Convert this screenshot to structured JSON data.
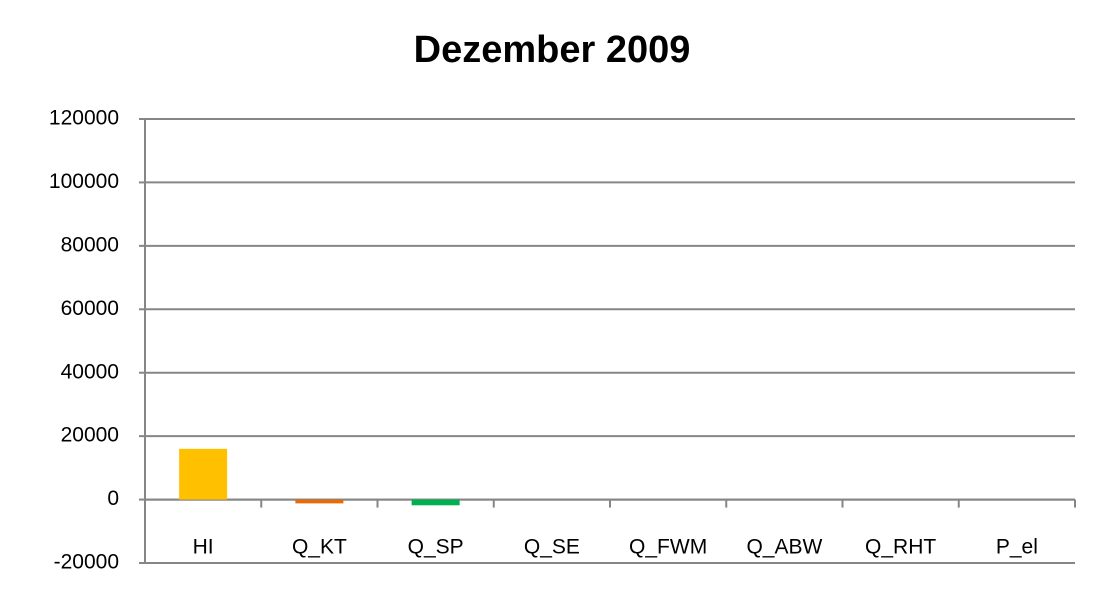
{
  "chart_data": {
    "type": "bar",
    "title": "Dezember 2009",
    "categories": [
      "HI",
      "Q_KT",
      "Q_SP",
      "Q_SE",
      "Q_FWM",
      "Q_ABW",
      "Q_RHT",
      "P_el"
    ],
    "values": [
      16000,
      -1200,
      -1800,
      0,
      0,
      0,
      0,
      0
    ],
    "colors": [
      "#ffc000",
      "#e46c0a",
      "#00b050",
      "#4f81bd",
      "#c0504d",
      "#9bbb59",
      "#8064a2",
      "#4bacc6"
    ],
    "ylim": [
      -20000,
      120000
    ],
    "yticks": [
      -20000,
      0,
      20000,
      40000,
      60000,
      80000,
      100000,
      120000
    ],
    "grid": true
  }
}
